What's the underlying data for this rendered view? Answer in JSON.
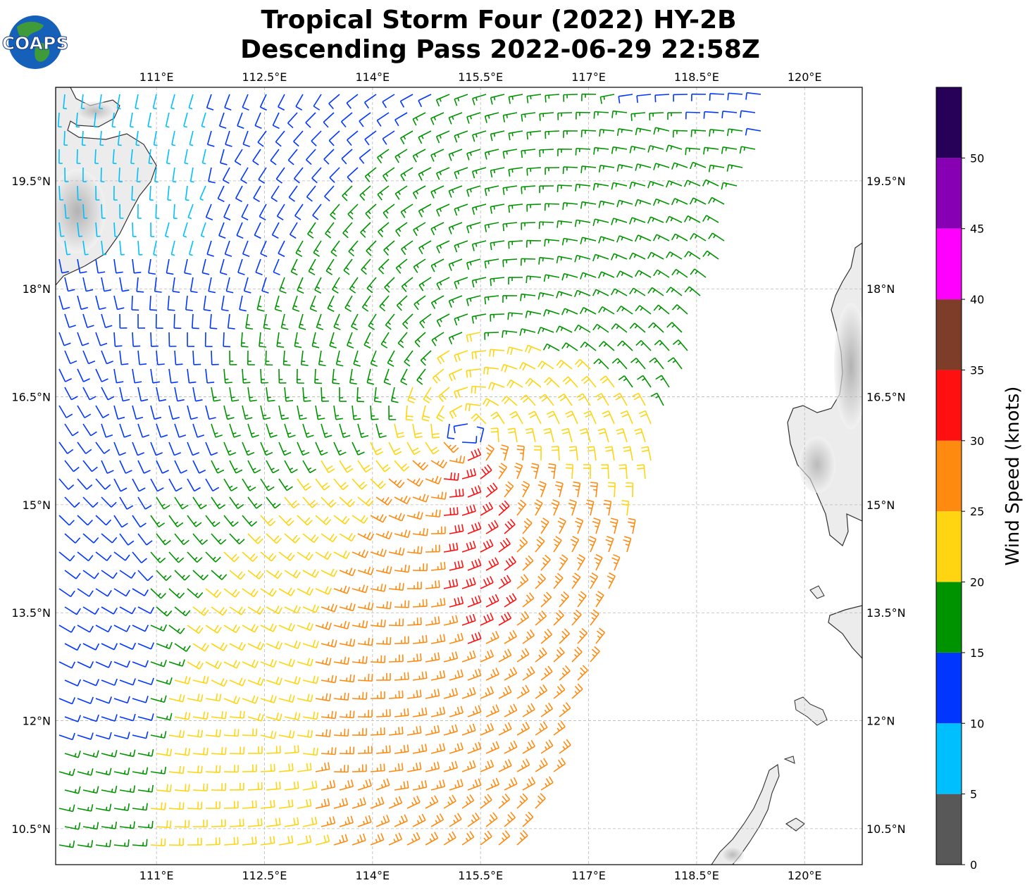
{
  "title_line1": "Tropical Storm Four (2022) HY-2B",
  "title_line2": "Descending Pass 2022-06-29 22:58Z",
  "logo": {
    "text": "COAPS"
  },
  "map": {
    "lon_range": [
      109.6,
      120.8
    ],
    "lat_range": [
      10.0,
      20.8
    ],
    "lon_ticks": [
      111,
      112.5,
      114,
      115.5,
      117,
      118.5,
      120
    ],
    "lon_tick_labels": [
      "111°E",
      "112.5°E",
      "114°E",
      "115.5°E",
      "117°E",
      "118.5°E",
      "120°E"
    ],
    "lat_ticks": [
      10.5,
      12,
      13.5,
      15,
      16.5,
      18,
      19.5
    ],
    "lat_tick_labels": [
      "10.5°N",
      "12°N",
      "13.5°N",
      "15°N",
      "16.5°N",
      "18°N",
      "19.5°N"
    ],
    "gridlines": true,
    "storm_center": {
      "lon": 115.3,
      "lat": 16.0
    },
    "land_regions": [
      "Hainan Island",
      "Luzon"
    ]
  },
  "colorbar": {
    "label": "Wind Speed (knots)",
    "ticks": [
      0,
      5,
      10,
      15,
      20,
      25,
      30,
      35,
      40,
      45,
      50
    ],
    "bins": [
      {
        "min": 0,
        "max": 5,
        "color": "#585858"
      },
      {
        "min": 5,
        "max": 10,
        "color": "#00bfff"
      },
      {
        "min": 10,
        "max": 15,
        "color": "#0036ff"
      },
      {
        "min": 15,
        "max": 20,
        "color": "#009300"
      },
      {
        "min": 20,
        "max": 25,
        "color": "#ffd410"
      },
      {
        "min": 25,
        "max": 30,
        "color": "#ff8a10"
      },
      {
        "min": 30,
        "max": 35,
        "color": "#ff1010"
      },
      {
        "min": 35,
        "max": 40,
        "color": "#7d3d28"
      },
      {
        "min": 40,
        "max": 45,
        "color": "#ff00ff"
      },
      {
        "min": 45,
        "max": 50,
        "color": "#8800b3"
      },
      {
        "min": 50,
        "max": 55,
        "color": "#270058"
      }
    ]
  }
}
